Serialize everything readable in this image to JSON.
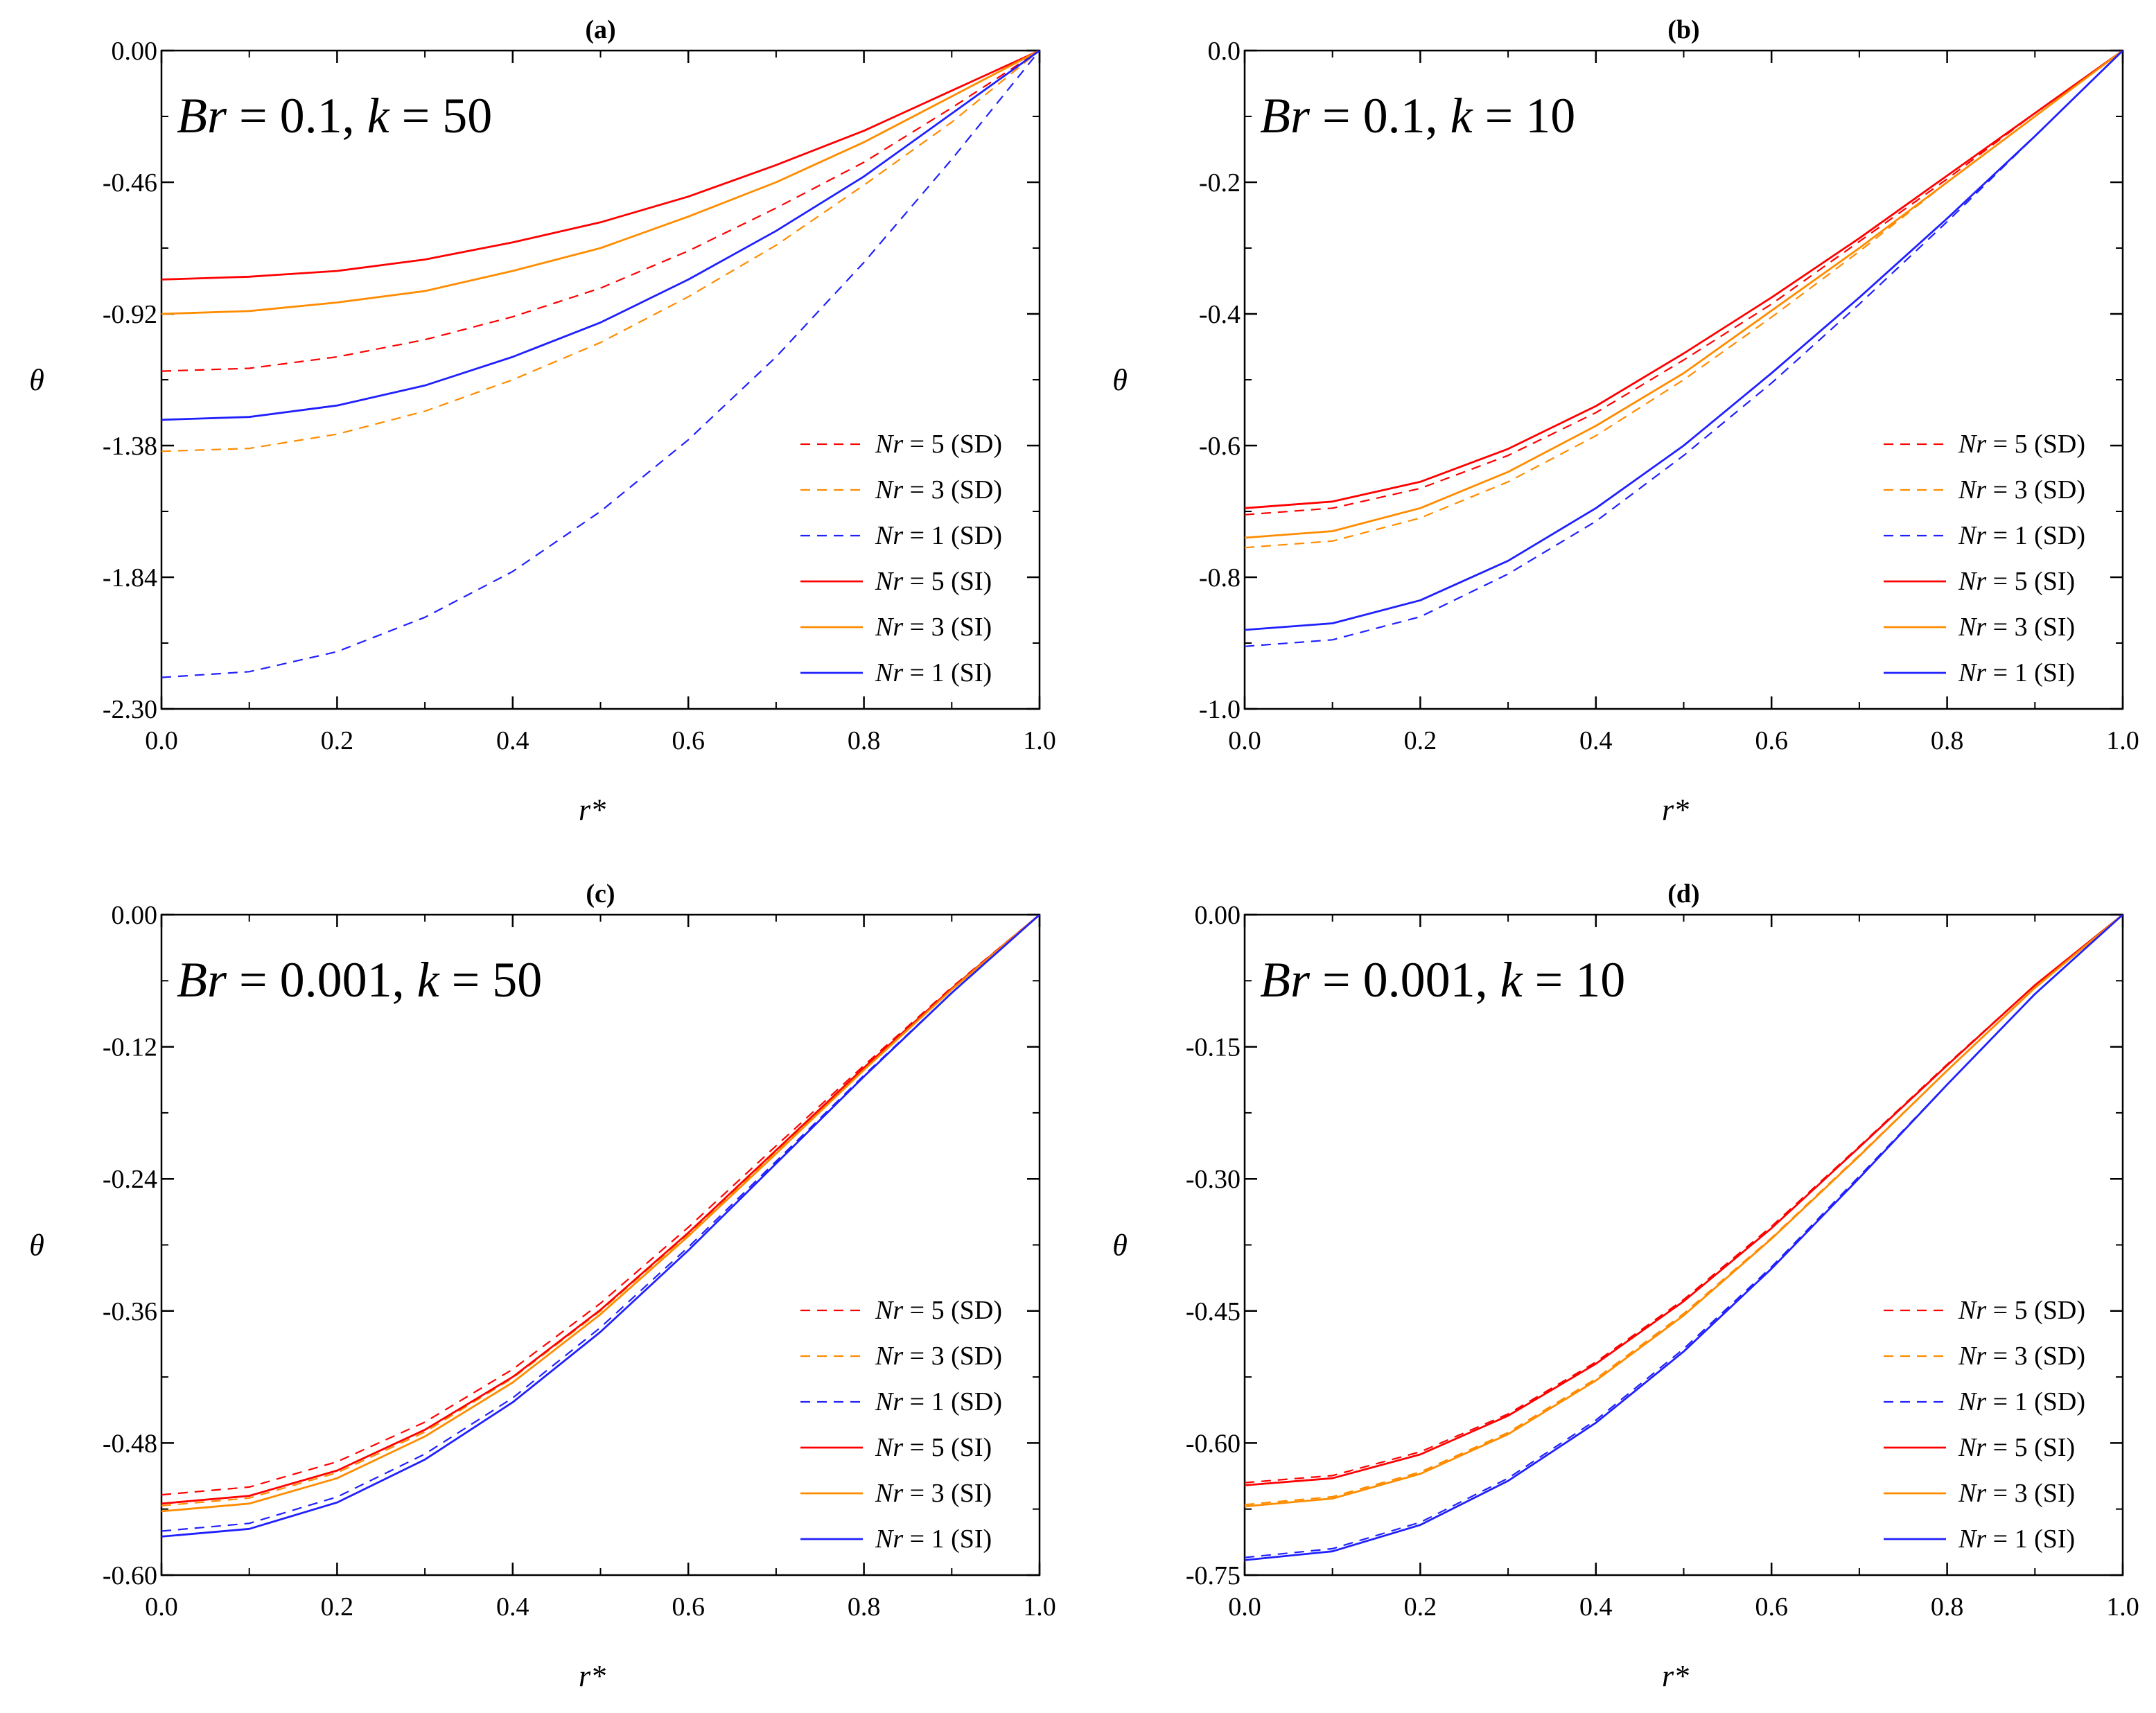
{
  "chart_data": [
    {
      "type": "line",
      "panel_title": "(a)",
      "annotation": {
        "lhs": "Br",
        "lhs_val": "0.1",
        "rhs": "k",
        "rhs_val": "50"
      },
      "xlabel": "r*",
      "ylabel": "θ",
      "xlim": [
        0.0,
        1.0
      ],
      "ylim": [
        -2.3,
        0.0
      ],
      "xticks": [
        "0.0",
        "0.2",
        "0.4",
        "0.6",
        "0.8",
        "1.0"
      ],
      "yticks": [
        "0.00",
        "-0.46",
        "-0.92",
        "-1.38",
        "-1.84",
        "-2.30"
      ],
      "ytick_values": [
        0.0,
        -0.46,
        -0.92,
        -1.38,
        -1.84,
        -2.3
      ],
      "legend_position": "bottom-right",
      "x": [
        0.0,
        0.1,
        0.2,
        0.3,
        0.4,
        0.5,
        0.6,
        0.7,
        0.8,
        0.9,
        1.0
      ],
      "series": [
        {
          "name": "Nr = 5 (SD)",
          "nr": "5",
          "kind": "SD",
          "color": "#ff0000",
          "values": [
            -1.12,
            -1.11,
            -1.07,
            -1.01,
            -0.93,
            -0.83,
            -0.7,
            -0.55,
            -0.39,
            -0.2,
            0.0
          ]
        },
        {
          "name": "Nr = 3 (SD)",
          "nr": "3",
          "kind": "SD",
          "color": "#ff8c00",
          "values": [
            -1.4,
            -1.39,
            -1.34,
            -1.26,
            -1.15,
            -1.02,
            -0.86,
            -0.68,
            -0.47,
            -0.25,
            0.0
          ]
        },
        {
          "name": "Nr = 1 (SD)",
          "nr": "1",
          "kind": "SD",
          "color": "#2020ff",
          "values": [
            -2.19,
            -2.17,
            -2.1,
            -1.98,
            -1.82,
            -1.61,
            -1.36,
            -1.07,
            -0.74,
            -0.38,
            0.0
          ]
        },
        {
          "name": "Nr = 5 (SI)",
          "nr": "5",
          "kind": "SI",
          "color": "#ff0000",
          "values": [
            -0.8,
            -0.79,
            -0.77,
            -0.73,
            -0.67,
            -0.6,
            -0.51,
            -0.4,
            -0.28,
            -0.14,
            0.0
          ]
        },
        {
          "name": "Nr = 3 (SI)",
          "nr": "3",
          "kind": "SI",
          "color": "#ff8c00",
          "values": [
            -0.92,
            -0.91,
            -0.88,
            -0.84,
            -0.77,
            -0.69,
            -0.58,
            -0.46,
            -0.32,
            -0.16,
            0.0
          ]
        },
        {
          "name": "Nr = 1 (SI)",
          "nr": "1",
          "kind": "SI",
          "color": "#2020ff",
          "values": [
            -1.29,
            -1.28,
            -1.24,
            -1.17,
            -1.07,
            -0.95,
            -0.8,
            -0.63,
            -0.44,
            -0.22,
            0.0
          ]
        }
      ]
    },
    {
      "type": "line",
      "panel_title": "(b)",
      "annotation": {
        "lhs": "Br",
        "lhs_val": "0.1",
        "rhs": "k",
        "rhs_val": "10"
      },
      "xlabel": "r*",
      "ylabel": "θ",
      "xlim": [
        0.0,
        1.0
      ],
      "ylim": [
        -1.0,
        0.0
      ],
      "xticks": [
        "0.0",
        "0.2",
        "0.4",
        "0.6",
        "0.8",
        "1.0"
      ],
      "yticks": [
        "0.0",
        "-0.2",
        "-0.4",
        "-0.6",
        "-0.8",
        "-1.0"
      ],
      "ytick_values": [
        0.0,
        -0.2,
        -0.4,
        -0.6,
        -0.8,
        -1.0
      ],
      "legend_position": "bottom-right",
      "x": [
        0.0,
        0.1,
        0.2,
        0.3,
        0.4,
        0.5,
        0.6,
        0.7,
        0.8,
        0.9,
        1.0
      ],
      "series": [
        {
          "name": "Nr = 5 (SD)",
          "nr": "5",
          "kind": "SD",
          "color": "#ff0000",
          "values": [
            -0.705,
            -0.695,
            -0.665,
            -0.615,
            -0.55,
            -0.47,
            -0.385,
            -0.29,
            -0.195,
            -0.095,
            0.0
          ]
        },
        {
          "name": "Nr = 3 (SD)",
          "nr": "3",
          "kind": "SD",
          "color": "#ff8c00",
          "values": [
            -0.755,
            -0.745,
            -0.71,
            -0.655,
            -0.585,
            -0.5,
            -0.405,
            -0.305,
            -0.2,
            -0.1,
            0.0
          ]
        },
        {
          "name": "Nr = 1 (SD)",
          "nr": "1",
          "kind": "SD",
          "color": "#2020ff",
          "values": [
            -0.905,
            -0.895,
            -0.86,
            -0.795,
            -0.715,
            -0.615,
            -0.505,
            -0.385,
            -0.26,
            -0.13,
            0.0
          ]
        },
        {
          "name": "Nr = 5 (SI)",
          "nr": "5",
          "kind": "SI",
          "color": "#ff0000",
          "values": [
            -0.695,
            -0.685,
            -0.655,
            -0.605,
            -0.54,
            -0.46,
            -0.375,
            -0.285,
            -0.19,
            -0.095,
            0.0
          ]
        },
        {
          "name": "Nr = 3 (SI)",
          "nr": "3",
          "kind": "SI",
          "color": "#ff8c00",
          "values": [
            -0.74,
            -0.73,
            -0.695,
            -0.64,
            -0.57,
            -0.49,
            -0.395,
            -0.3,
            -0.2,
            -0.1,
            0.0
          ]
        },
        {
          "name": "Nr = 1 (SI)",
          "nr": "1",
          "kind": "SI",
          "color": "#2020ff",
          "values": [
            -0.88,
            -0.87,
            -0.835,
            -0.775,
            -0.695,
            -0.6,
            -0.49,
            -0.375,
            -0.255,
            -0.13,
            0.0
          ]
        }
      ]
    },
    {
      "type": "line",
      "panel_title": "(c)",
      "annotation": {
        "lhs": "Br",
        "lhs_val": "0.001",
        "rhs": "k",
        "rhs_val": "50"
      },
      "xlabel": "r*",
      "ylabel": "θ",
      "xlim": [
        0.0,
        1.0
      ],
      "ylim": [
        -0.6,
        0.0
      ],
      "xticks": [
        "0.0",
        "0.2",
        "0.4",
        "0.6",
        "0.8",
        "1.0"
      ],
      "yticks": [
        "0.00",
        "-0.12",
        "-0.24",
        "-0.36",
        "-0.48",
        "-0.60"
      ],
      "ytick_values": [
        0.0,
        -0.12,
        -0.24,
        -0.36,
        -0.48,
        -0.6
      ],
      "legend_position": "bottom-right",
      "x": [
        0.0,
        0.1,
        0.2,
        0.3,
        0.4,
        0.5,
        0.6,
        0.7,
        0.8,
        0.9,
        1.0
      ],
      "series": [
        {
          "name": "Nr = 5 (SD)",
          "nr": "5",
          "kind": "SD",
          "color": "#ff0000",
          "values": [
            -0.527,
            -0.52,
            -0.497,
            -0.461,
            -0.413,
            -0.353,
            -0.284,
            -0.21,
            -0.137,
            -0.066,
            0.0
          ]
        },
        {
          "name": "Nr = 3 (SD)",
          "nr": "3",
          "kind": "SD",
          "color": "#ff8c00",
          "values": [
            -0.537,
            -0.53,
            -0.507,
            -0.47,
            -0.421,
            -0.36,
            -0.29,
            -0.215,
            -0.14,
            -0.068,
            0.0
          ]
        },
        {
          "name": "Nr = 1 (SD)",
          "nr": "1",
          "kind": "SD",
          "color": "#2020ff",
          "values": [
            -0.56,
            -0.553,
            -0.529,
            -0.49,
            -0.439,
            -0.375,
            -0.302,
            -0.224,
            -0.146,
            -0.071,
            0.0
          ]
        },
        {
          "name": "Nr = 5 (SI)",
          "nr": "5",
          "kind": "SI",
          "color": "#ff0000",
          "values": [
            -0.535,
            -0.528,
            -0.505,
            -0.468,
            -0.42,
            -0.359,
            -0.289,
            -0.214,
            -0.139,
            -0.067,
            0.0
          ]
        },
        {
          "name": "Nr = 3 (SI)",
          "nr": "3",
          "kind": "SI",
          "color": "#ff8c00",
          "values": [
            -0.542,
            -0.535,
            -0.512,
            -0.474,
            -0.425,
            -0.363,
            -0.292,
            -0.217,
            -0.141,
            -0.068,
            0.0
          ]
        },
        {
          "name": "Nr = 1 (SI)",
          "nr": "1",
          "kind": "SI",
          "color": "#2020ff",
          "values": [
            -0.565,
            -0.558,
            -0.534,
            -0.495,
            -0.443,
            -0.379,
            -0.305,
            -0.226,
            -0.147,
            -0.071,
            0.0
          ]
        }
      ]
    },
    {
      "type": "line",
      "panel_title": "(d)",
      "annotation": {
        "lhs": "Br",
        "lhs_val": "0.001",
        "rhs": "k",
        "rhs_val": "10"
      },
      "xlabel": "r*",
      "ylabel": "θ",
      "xlim": [
        0.0,
        1.0
      ],
      "ylim": [
        -0.75,
        0.0
      ],
      "xticks": [
        "0.0",
        "0.2",
        "0.4",
        "0.6",
        "0.8",
        "1.0"
      ],
      "yticks": [
        "0.00",
        "-0.15",
        "-0.30",
        "-0.45",
        "-0.60",
        "-0.75"
      ],
      "ytick_values": [
        0.0,
        -0.15,
        -0.3,
        -0.45,
        -0.6,
        -0.75
      ],
      "legend_position": "bottom-right",
      "x": [
        0.0,
        0.1,
        0.2,
        0.3,
        0.4,
        0.5,
        0.6,
        0.7,
        0.8,
        0.9,
        1.0
      ],
      "series": [
        {
          "name": "Nr = 5 (SD)",
          "nr": "5",
          "kind": "SD",
          "color": "#ff0000",
          "values": [
            -0.645,
            -0.637,
            -0.61,
            -0.567,
            -0.508,
            -0.437,
            -0.354,
            -0.263,
            -0.17,
            -0.08,
            0.0
          ]
        },
        {
          "name": "Nr = 3 (SD)",
          "nr": "3",
          "kind": "SD",
          "color": "#ff8c00",
          "values": [
            -0.67,
            -0.661,
            -0.633,
            -0.588,
            -0.527,
            -0.453,
            -0.367,
            -0.273,
            -0.177,
            -0.083,
            0.0
          ]
        },
        {
          "name": "Nr = 1 (SD)",
          "nr": "1",
          "kind": "SD",
          "color": "#2020ff",
          "values": [
            -0.73,
            -0.72,
            -0.69,
            -0.64,
            -0.574,
            -0.493,
            -0.4,
            -0.297,
            -0.193,
            -0.09,
            0.0
          ]
        },
        {
          "name": "Nr = 5 (SI)",
          "nr": "5",
          "kind": "SI",
          "color": "#ff0000",
          "values": [
            -0.648,
            -0.64,
            -0.613,
            -0.569,
            -0.51,
            -0.439,
            -0.356,
            -0.264,
            -0.171,
            -0.08,
            0.0
          ]
        },
        {
          "name": "Nr = 3 (SI)",
          "nr": "3",
          "kind": "SI",
          "color": "#ff8c00",
          "values": [
            -0.672,
            -0.663,
            -0.635,
            -0.59,
            -0.529,
            -0.455,
            -0.368,
            -0.274,
            -0.177,
            -0.083,
            0.0
          ]
        },
        {
          "name": "Nr = 1 (SI)",
          "nr": "1",
          "kind": "SI",
          "color": "#2020ff",
          "values": [
            -0.733,
            -0.723,
            -0.693,
            -0.643,
            -0.577,
            -0.496,
            -0.402,
            -0.299,
            -0.193,
            -0.09,
            0.0
          ]
        }
      ]
    }
  ]
}
